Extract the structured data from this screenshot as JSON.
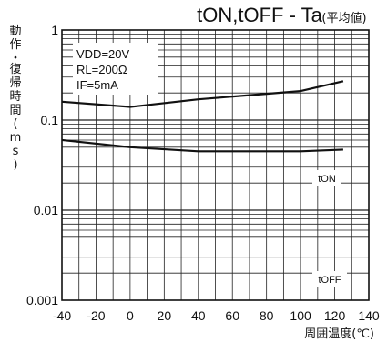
{
  "chart_data": {
    "type": "line",
    "title": "tON,tOFF - Ta",
    "subtitle": "(平均値)",
    "ylabel": "動作・復帰時間(ms)",
    "xlabel": "周囲温度(℃)",
    "x_scale": "linear",
    "y_scale": "log",
    "xlim": [
      -40,
      140
    ],
    "ylim": [
      0.001,
      1
    ],
    "x_ticks": [
      -40,
      -20,
      0,
      20,
      40,
      60,
      80,
      100,
      120,
      140
    ],
    "x_tick_labels": [
      "-40",
      "-20",
      "0",
      "20",
      "40",
      "60",
      "80",
      "100",
      "120",
      "140"
    ],
    "y_ticks": [
      0.001,
      0.01,
      0.1,
      1
    ],
    "y_tick_labels": [
      "0.001",
      "0.01",
      "0.1",
      "1"
    ],
    "grid": true,
    "conditions": [
      "VDD=20V",
      "RL=200Ω",
      "IF=5mA"
    ],
    "series": [
      {
        "name": "tON",
        "x": [
          -40,
          0,
          40,
          100,
          125
        ],
        "y": [
          0.16,
          0.14,
          0.17,
          0.21,
          0.27
        ]
      },
      {
        "name": "tOFF",
        "x": [
          -40,
          0,
          40,
          100,
          125
        ],
        "y": [
          0.06,
          0.05,
          0.045,
          0.045,
          0.047
        ]
      }
    ]
  }
}
